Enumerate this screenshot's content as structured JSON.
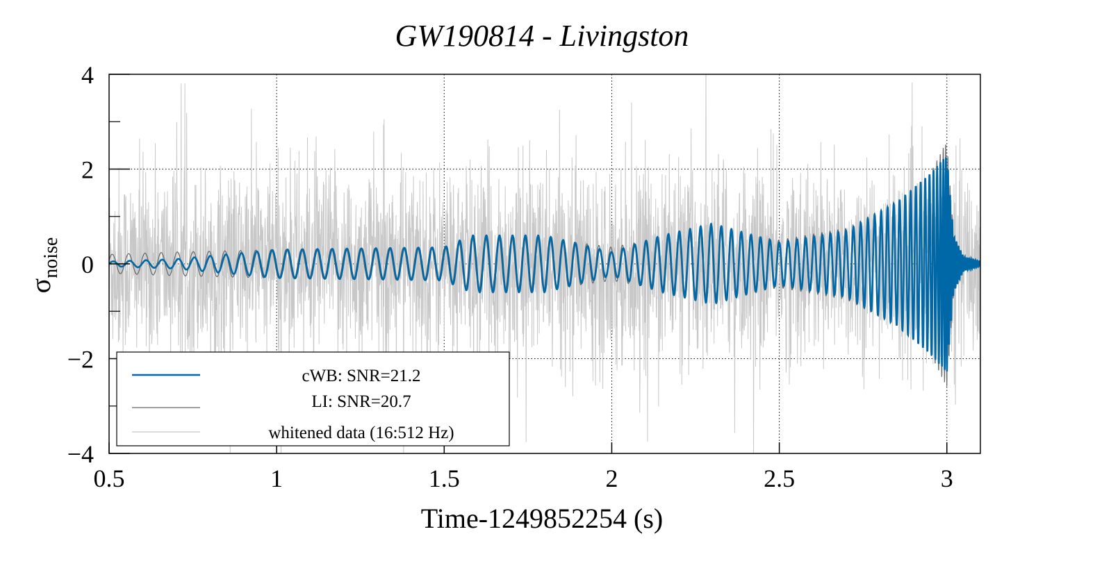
{
  "chart_data": {
    "type": "line",
    "title": "GW190814 - Livingston",
    "xlabel": "Time-1249852254 (s)",
    "ylabel_main": "σ",
    "ylabel_sub": "noise",
    "xlim": [
      0.5,
      3.1
    ],
    "ylim": [
      -4,
      4
    ],
    "xticks": [
      0.5,
      1,
      1.5,
      2,
      2.5,
      3
    ],
    "xtick_labels": [
      "0.5",
      "1",
      "1.5",
      "2",
      "2.5",
      "3"
    ],
    "yticks": [
      -4,
      -2,
      0,
      2,
      4
    ],
    "ytick_labels": [
      "−4",
      "−2",
      "0",
      "2",
      "4"
    ],
    "grid": true,
    "legend_position": "bottom-left",
    "chirp_model": {
      "coalescence_time": 3.01,
      "frequency_at_1s_hz": 22
    },
    "series": [
      {
        "name": "cWB: SNR=21.2",
        "color": "#0068a6",
        "envelope_t": [
          0.5,
          0.7,
          1.0,
          1.5,
          1.58,
          1.8,
          2.0,
          2.15,
          2.3,
          2.5,
          2.7,
          2.85,
          2.95,
          3.0,
          3.02,
          3.05,
          3.1
        ],
        "envelope_amp": [
          0.05,
          0.1,
          0.3,
          0.35,
          0.6,
          0.6,
          0.25,
          0.6,
          0.85,
          0.45,
          0.7,
          1.3,
          1.9,
          2.3,
          0.6,
          0.15,
          0.05
        ]
      },
      {
        "name": "LI: SNR=20.7",
        "color": "#666666",
        "envelope_t": [
          0.5,
          0.7,
          1.0,
          1.5,
          1.58,
          1.8,
          2.0,
          2.15,
          2.3,
          2.5,
          2.7,
          2.85,
          2.95,
          3.0,
          3.02,
          3.05,
          3.1
        ],
        "envelope_amp": [
          0.2,
          0.25,
          0.3,
          0.35,
          0.55,
          0.55,
          0.35,
          0.55,
          0.75,
          0.5,
          0.75,
          1.3,
          1.9,
          2.6,
          0.6,
          0.15,
          0.05
        ]
      },
      {
        "name": "whitened data (16:512 Hz)",
        "color": "#c8c8c8",
        "noise_sigma": 1.0
      }
    ]
  }
}
